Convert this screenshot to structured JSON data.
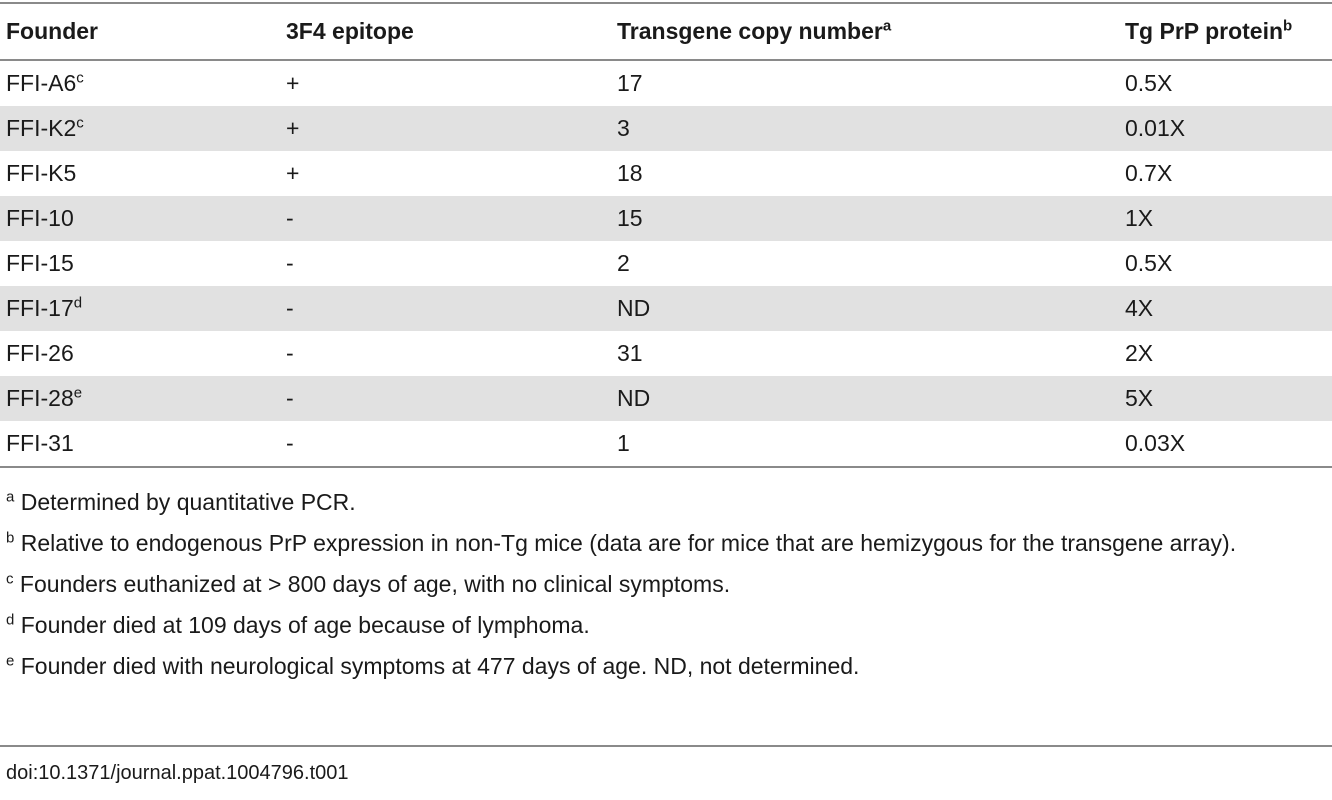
{
  "table": {
    "headers": [
      {
        "label": "Founder",
        "sup": ""
      },
      {
        "label": "3F4 epitope",
        "sup": ""
      },
      {
        "label": "Transgene copy number",
        "sup": "a"
      },
      {
        "label": "Tg PrP protein",
        "sup": "b"
      }
    ],
    "rows": [
      {
        "founder": "FFI-A6",
        "sup": "c",
        "epitope": "+",
        "copy": "17",
        "protein": "0.5X"
      },
      {
        "founder": "FFI-K2",
        "sup": "c",
        "epitope": "+",
        "copy": "3",
        "protein": "0.01X"
      },
      {
        "founder": "FFI-K5",
        "sup": "",
        "epitope": "+",
        "copy": "18",
        "protein": "0.7X"
      },
      {
        "founder": "FFI-10",
        "sup": "",
        "epitope": "-",
        "copy": "15",
        "protein": "1X"
      },
      {
        "founder": "FFI-15",
        "sup": "",
        "epitope": "-",
        "copy": "2",
        "protein": "0.5X"
      },
      {
        "founder": "FFI-17",
        "sup": "d",
        "epitope": "-",
        "copy": "ND",
        "protein": "4X"
      },
      {
        "founder": "FFI-26",
        "sup": "",
        "epitope": "-",
        "copy": "31",
        "protein": "2X"
      },
      {
        "founder": "FFI-28",
        "sup": "e",
        "epitope": "-",
        "copy": "ND",
        "protein": "5X"
      },
      {
        "founder": "FFI-31",
        "sup": "",
        "epitope": "-",
        "copy": "1",
        "protein": "0.03X"
      }
    ]
  },
  "footnotes": [
    {
      "mark": "a",
      "text": "Determined by quantitative PCR."
    },
    {
      "mark": "b",
      "text": "Relative to endogenous PrP expression in non-Tg mice (data are for mice that are hemizygous for the transgene array)."
    },
    {
      "mark": "c",
      "text": "Founders euthanized at > 800 days of age, with no clinical symptoms."
    },
    {
      "mark": "d",
      "text": "Founder died at 109 days of age because of lymphoma."
    },
    {
      "mark": "e",
      "text": "Founder died with neurological symptoms at 477 days of age. ND, not determined."
    }
  ],
  "doi": "doi:10.1371/journal.ppat.1004796.t001"
}
